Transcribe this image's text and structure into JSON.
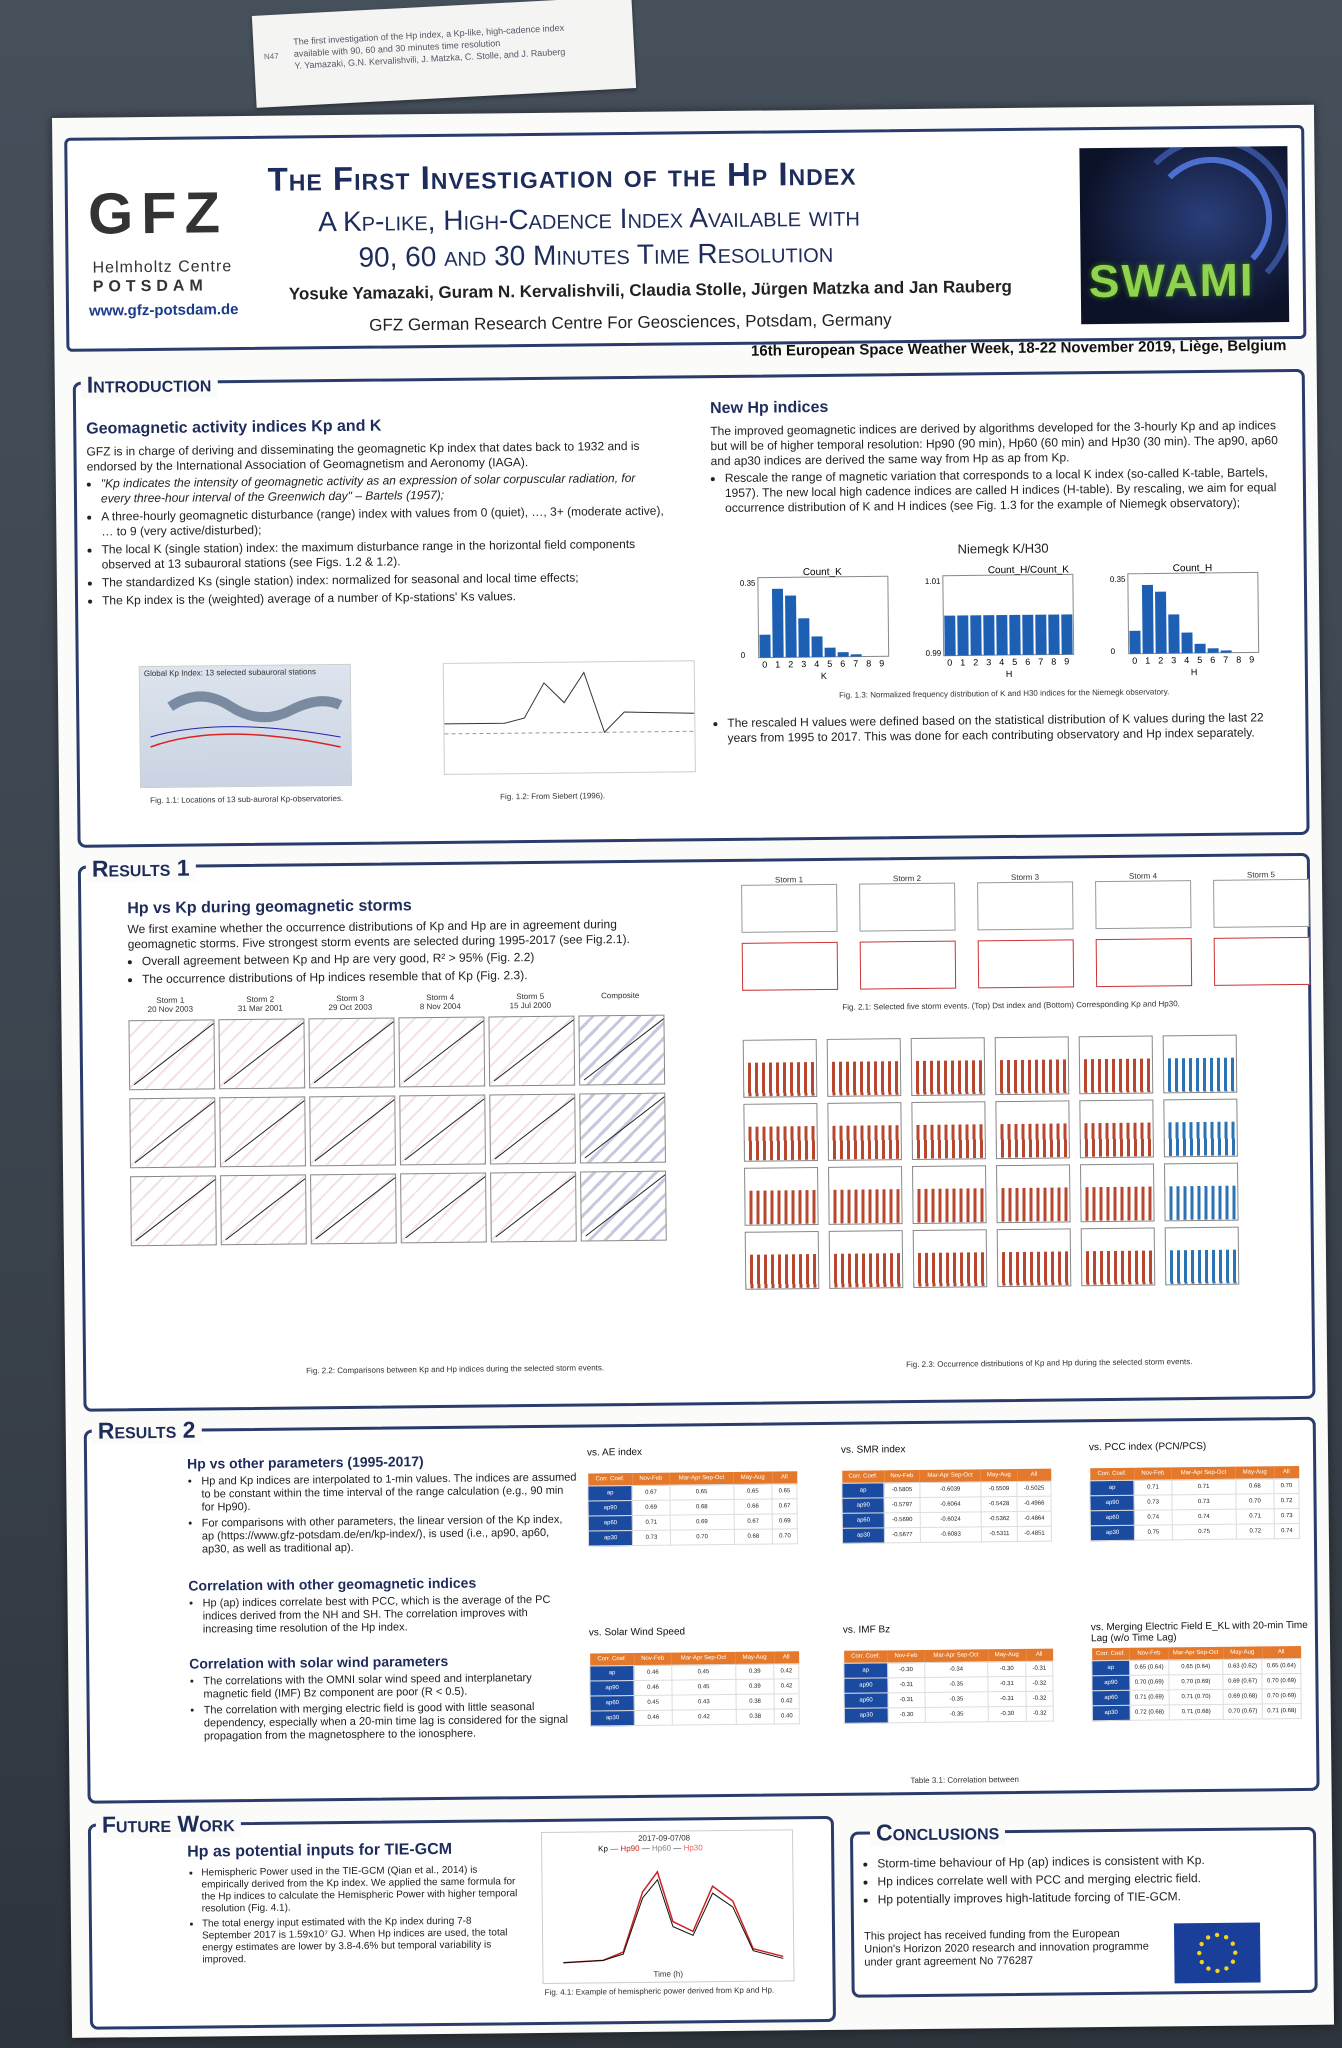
{
  "note": {
    "number": "N47",
    "lines": [
      "The first investigation of the Hp index, a Kp-like, high-cadence index",
      "available with 90, 60 and 30 minutes time resolution",
      "Y. Yamazaki, G.N. Kervalishvili, J. Matzka, C. Stolle, and J. Rauberg"
    ]
  },
  "header": {
    "logo": "GFZ",
    "logo_sub1": "Helmholtz Centre",
    "logo_sub2": "POTSDAM",
    "logo_url": "www.gfz-potsdam.de",
    "title1": "The First Investigation of the Hp Index",
    "title2": "A Kp-like, High-Cadence Index Available with",
    "title3": "90, 60 and 30 Minutes Time Resolution",
    "authors": "Yosuke Yamazaki, Guram N. Kervalishvili, Claudia Stolle, Jürgen Matzka and Jan Rauberg",
    "affiliation": "GFZ German Research Centre For Geosciences, Potsdam, Germany",
    "project_logo": "SWAMI",
    "conference": "16th European Space Weather Week, 18-22 November 2019, Liège, Belgium"
  },
  "intro": {
    "title": "Introduction",
    "sub1": "Geomagnetic activity indices Kp and K",
    "para1": "GFZ is in charge of deriving and disseminating the geomagnetic Kp index that dates back to 1932 and is endorsed by the International Association of Geomagnetism and Aeronomy (IAGA).",
    "bullets1": [
      "\"Kp indicates the intensity of geomagnetic activity as an expression of solar corpuscular radiation, for every three-hour interval of the Greenwich day\" – Bartels (1957);",
      "A three-hourly geomagnetic disturbance (range) index with values from 0 (quiet), …, 3+ (moderate active), … to 9 (very active/disturbed);",
      "The local K (single station) index: the maximum disturbance range in the horizontal field components observed at 13 subauroral stations (see Figs. 1.2 & 1.2).",
      "The standardized Ks (single station) index: normalized for seasonal and local time effects;",
      "The Kp index is the (weighted) average of a number of Kp-stations' Ks values."
    ],
    "fig11_title": "Global Kp Index: 13 selected subauroral stations",
    "fig11_cap": "Fig. 1.1: Locations of 13 sub-auroral Kp-observatories.",
    "fig12_cap": "Fig. 1.2: From Siebert (1996).",
    "sub2": "New Hp indices",
    "para2": "The improved geomagnetic indices are derived by algorithms developed for the 3-hourly Kp and ap indices but will be of higher temporal resolution: Hp90 (90 min), Hp60 (60 min) and Hp30 (30 min). The ap90, ap60 and ap30 indices are derived the same way from Hp as ap from Kp.",
    "bullet2": "Rescale the range of magnetic variation that corresponds to a local K index (so-called K-table, Bartels, 1957). The new local high cadence indices are called H indices (H-table). By rescaling, we aim for equal occurrence distribution of K and H indices (see Fig. 1.3 for the example of Niemegk observatory);",
    "fig13_title": "Niemegk K/H30",
    "fig13_cap": "Fig. 1.3: Normalized frequency distribution of K and H30 indices for the Niemegk observatory.",
    "bullet3": "The rescaled H values were defined based on the statistical distribution of K values during the last 22 years from 1995 to 2017. This was done for each contributing observatory and Hp index separately."
  },
  "chart_data": [
    {
      "type": "bar",
      "title": "",
      "ylabel": "Count_K",
      "xlabel": "K",
      "categories": [
        "0",
        "1",
        "2",
        "3",
        "4",
        "5",
        "6",
        "7",
        "8",
        "9"
      ],
      "values": [
        0.1,
        0.3,
        0.27,
        0.17,
        0.09,
        0.04,
        0.02,
        0.01,
        0.0,
        0.0
      ],
      "ylim": [
        0,
        0.35
      ]
    },
    {
      "type": "bar",
      "title": "",
      "ylabel": "Count_H/Count_K",
      "xlabel": "H",
      "categories": [
        "0",
        "1",
        "2",
        "3",
        "4",
        "5",
        "6",
        "7",
        "8",
        "9"
      ],
      "values": [
        1.0,
        1.0,
        1.0,
        1.0,
        1.0,
        1.0,
        1.0,
        1.0,
        1.0,
        1.0
      ],
      "ylim": [
        0.99,
        1.01
      ]
    },
    {
      "type": "bar",
      "title": "",
      "ylabel": "Count_H",
      "xlabel": "H",
      "categories": [
        "0",
        "1",
        "2",
        "3",
        "4",
        "5",
        "6",
        "7",
        "8",
        "9"
      ],
      "values": [
        0.1,
        0.3,
        0.27,
        0.17,
        0.09,
        0.04,
        0.02,
        0.01,
        0.0,
        0.0
      ],
      "ylim": [
        0,
        0.35
      ]
    }
  ],
  "results1": {
    "title": "Results 1",
    "sub": "Hp vs Kp during geomagnetic storms",
    "para": "We first examine whether the occurrence distributions of Kp and Hp are in agreement during geomagnetic storms. Five strongest storm events are selected during 1995-2017 (see Fig.2.1).",
    "bullets": [
      "Overall agreement between Kp and Hp are very good, R² > 95% (Fig. 2.2)",
      "The occurrence distributions of Hp indices resemble that of Kp (Fig. 2.3)."
    ],
    "storms": [
      {
        "name": "Storm 1",
        "date": "20 Nov 2003"
      },
      {
        "name": "Storm 2",
        "date": "31 Mar 2001"
      },
      {
        "name": "Storm 3",
        "date": "29 Oct 2003"
      },
      {
        "name": "Storm 4",
        "date": "8 Nov 2004"
      },
      {
        "name": "Storm 5",
        "date": "15 Jul 2000"
      },
      {
        "name": "Composite",
        "date": ""
      }
    ],
    "fig21_cap": "Fig. 2.1: Selected five storm events. (Top) Dst index and (Bottom) Corresponding Kp and Hp30.",
    "fig22_cap": "Fig. 2.2: Comparisons between Kp and Hp indices during the selected storm events.",
    "fig23_cap": "Fig. 2.3: Occurrence distributions of Kp and Hp during the selected storm events."
  },
  "results2": {
    "title": "Results 2",
    "sub1": "Hp vs other parameters (1995-2017)",
    "bullets1": [
      "Hp and Kp indices are interpolated to 1-min values. The indices are assumed to be constant within the time interval of the range calculation (e.g., 90 min for Hp90).",
      "For comparisons with other parameters, the linear version of the Kp index, ap (https://www.gfz-potsdam.de/en/kp-index/), is used (i.e., ap90, ap60, ap30, as well as traditional ap)."
    ],
    "sub2": "Correlation with other geomagnetic indices",
    "bullets2": [
      "Hp (ap) indices correlate best with PCC, which is the average of the PC indices derived from the NH and SH. The correlation improves with increasing time resolution of the Hp index."
    ],
    "sub3": "Correlation with solar wind parameters",
    "bullets3": [
      "The correlations with the OMNI solar wind speed and interplanetary magnetic field (IMF) Bz component are poor (R < 0.5).",
      "The correlation with merging electric field is good with little seasonal dependency, especially when a 20-min time lag is considered for the signal propagation from the magnetosphere to the ionosphere."
    ],
    "tables": [
      {
        "title": "vs. AE index",
        "rows": [
          [
            "ap",
            "0.67",
            "0.65",
            "0.65",
            "0.65"
          ],
          [
            "ap90",
            "0.69",
            "0.68",
            "0.66",
            "0.67"
          ],
          [
            "ap60",
            "0.71",
            "0.69",
            "0.67",
            "0.69"
          ],
          [
            "ap30",
            "0.73",
            "0.70",
            "0.68",
            "0.70"
          ]
        ]
      },
      {
        "title": "vs. SMR index",
        "rows": [
          [
            "ap",
            "-0.5805",
            "-0.6039",
            "-0.5509",
            "-0.5025"
          ],
          [
            "ap90",
            "-0.5797",
            "-0.6064",
            "-0.5428",
            "-0.4966"
          ],
          [
            "ap60",
            "-0.5690",
            "-0.6024",
            "-0.5362",
            "-0.4864"
          ],
          [
            "ap30",
            "-0.5677",
            "-0.6083",
            "-0.5311",
            "-0.4851"
          ]
        ]
      },
      {
        "title": "vs. PCC index (PCN/PCS)",
        "rows": [
          [
            "ap",
            "0.71",
            "0.71",
            "0.68",
            "0.70"
          ],
          [
            "ap90",
            "0.73",
            "0.73",
            "0.70",
            "0.72"
          ],
          [
            "ap60",
            "0.74",
            "0.74",
            "0.71",
            "0.73"
          ],
          [
            "ap30",
            "0.75",
            "0.75",
            "0.72",
            "0.74"
          ]
        ]
      },
      {
        "title": "vs. Solar Wind Speed",
        "rows": [
          [
            "ap",
            "0.46",
            "0.45",
            "0.39",
            "0.42"
          ],
          [
            "ap90",
            "0.46",
            "0.45",
            "0.39",
            "0.42"
          ],
          [
            "ap60",
            "0.45",
            "0.43",
            "0.38",
            "0.42"
          ],
          [
            "ap30",
            "0.46",
            "0.42",
            "0.38",
            "0.40"
          ]
        ]
      },
      {
        "title": "vs. IMF Bz",
        "rows": [
          [
            "ap",
            "-0.30",
            "-0.34",
            "-0.30",
            "-0.31"
          ],
          [
            "ap90",
            "-0.31",
            "-0.35",
            "-0.31",
            "-0.32"
          ],
          [
            "ap60",
            "-0.31",
            "-0.35",
            "-0.31",
            "-0.32"
          ],
          [
            "ap30",
            "-0.30",
            "-0.35",
            "-0.30",
            "-0.32"
          ]
        ]
      },
      {
        "title": "vs. Merging Electric Field E_KL with 20-min Time Lag (w/o Time Lag)",
        "rows": [
          [
            "ap",
            "0.65 (0.64)",
            "0.65 (0.64)",
            "0.63 (0.62)",
            "0.65 (0.64)"
          ],
          [
            "ap90",
            "0.70 (0.69)",
            "0.70 (0.69)",
            "0.69 (0.67)",
            "0.70 (0.69)"
          ],
          [
            "ap60",
            "0.71 (0.69)",
            "0.71 (0.70)",
            "0.69 (0.68)",
            "0.70 (0.69)"
          ],
          [
            "ap30",
            "0.72 (0.68)",
            "0.71 (0.68)",
            "0.70 (0.67)",
            "0.71 (0.68)"
          ]
        ]
      }
    ],
    "table_headers": [
      "Corr. Coef.",
      "Nov-Feb",
      "Mar-Apr Sep-Oct",
      "May-Aug",
      "All"
    ],
    "table_cap": "Table 3.1: Correlation between"
  },
  "future": {
    "title": "Future Work",
    "sub": "Hp as potential inputs for TIE-GCM",
    "bullets": [
      "Hemispheric Power used in the TIE-GCM (Qian et al., 2014) is empirically derived from the Kp index. We applied the same formula for the Hp indices to calculate the Hemispheric Power with higher temporal resolution (Fig. 4.1).",
      "The total energy input estimated with the Kp index during 7-8 September 2017 is 1.59x10⁷ GJ. When Hp indices are used, the total energy estimates are lower by 3.8-4.6% but temporal variability is improved."
    ],
    "fig_title": "2017-09-07/08",
    "legend": [
      "Kp",
      "Hp90",
      "Hp60",
      "Hp30"
    ],
    "fig_xlabel": "Time (h)",
    "fig_cap": "Fig. 4.1: Example of hemispheric power derived from Kp and Hp."
  },
  "conclusions": {
    "title": "Conclusions",
    "bullets": [
      "Storm-time behaviour of Hp (ap) indices is consistent with Kp.",
      "Hp indices correlate well with PCC and merging electric field.",
      "Hp potentially improves high-latitude forcing of TIE-GCM."
    ],
    "funding": "This project has received funding from the European Union's Horizon 2020 research and innovation programme under grant agreement No 776287"
  }
}
